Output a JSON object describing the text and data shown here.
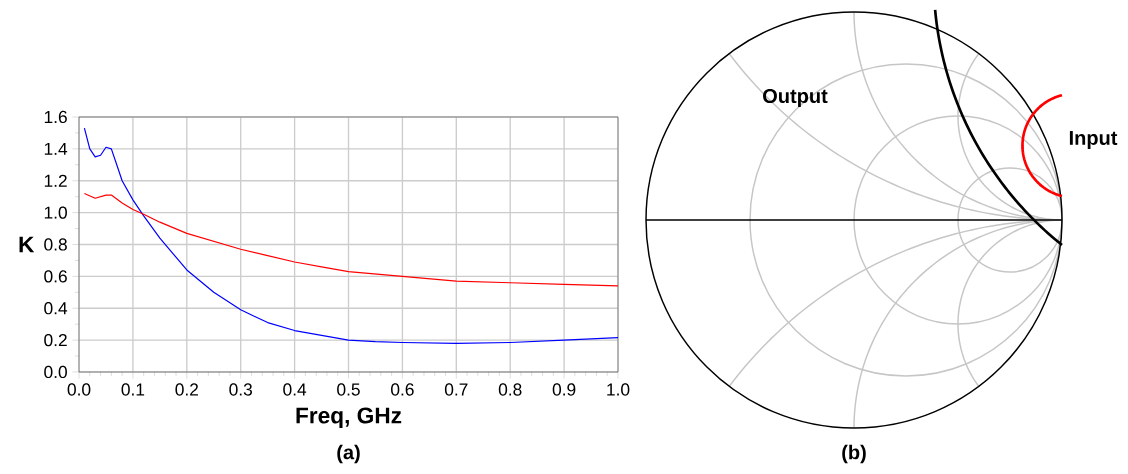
{
  "chart_data": [
    {
      "type": "line",
      "title": "(a)",
      "xlabel": "Freq, GHz",
      "ylabel": "K",
      "xlim": [
        0,
        1
      ],
      "ylim": [
        0,
        1.6
      ],
      "xticks": [
        {
          "value": 0,
          "label": "0.0"
        },
        {
          "value": 0.1,
          "label": "0.1"
        },
        {
          "value": 0.2,
          "label": "0.2"
        },
        {
          "value": 0.3,
          "label": "0.3"
        },
        {
          "value": 0.4,
          "label": "0.4"
        },
        {
          "value": 0.5,
          "label": "0.5"
        },
        {
          "value": 0.6,
          "label": "0.6"
        },
        {
          "value": 0.7,
          "label": "0.7"
        },
        {
          "value": 0.8,
          "label": "0.8"
        },
        {
          "value": 0.9,
          "label": "0.9"
        },
        {
          "value": 1,
          "label": "1.0"
        }
      ],
      "yticks": [
        {
          "value": 0,
          "label": "0.0"
        },
        0.2,
        0.4,
        0.6,
        0.8,
        {
          "value": 1,
          "label": "1.0"
        },
        1.2,
        1.4,
        1.6
      ],
      "grid": true,
      "series": [
        {
          "color": "#0000ff",
          "x": [
            0.01,
            0.02,
            0.03,
            0.04,
            0.05,
            0.06,
            0.07,
            0.08,
            0.1,
            0.12,
            0.15,
            0.2,
            0.25,
            0.3,
            0.35,
            0.4,
            0.45,
            0.5,
            0.55,
            0.6,
            0.7,
            0.8,
            0.9,
            1.0
          ],
          "values": [
            1.53,
            1.4,
            1.35,
            1.36,
            1.41,
            1.4,
            1.3,
            1.2,
            1.08,
            0.98,
            0.84,
            0.64,
            0.5,
            0.39,
            0.31,
            0.26,
            0.23,
            0.2,
            0.19,
            0.185,
            0.18,
            0.185,
            0.2,
            0.215
          ]
        },
        {
          "color": "#ff0000",
          "x": [
            0.01,
            0.03,
            0.05,
            0.06,
            0.08,
            0.1,
            0.12,
            0.15,
            0.2,
            0.25,
            0.3,
            0.35,
            0.4,
            0.45,
            0.5,
            0.6,
            0.7,
            0.8,
            0.9,
            1.0
          ],
          "values": [
            1.12,
            1.09,
            1.11,
            1.11,
            1.06,
            1.02,
            0.99,
            0.94,
            0.87,
            0.82,
            0.77,
            0.73,
            0.69,
            0.66,
            0.63,
            0.6,
            0.57,
            0.56,
            0.55,
            0.54
          ]
        }
      ]
    },
    {
      "type": "other",
      "title": "(b)",
      "annotations": [
        "Output",
        "Input"
      ]
    }
  ]
}
